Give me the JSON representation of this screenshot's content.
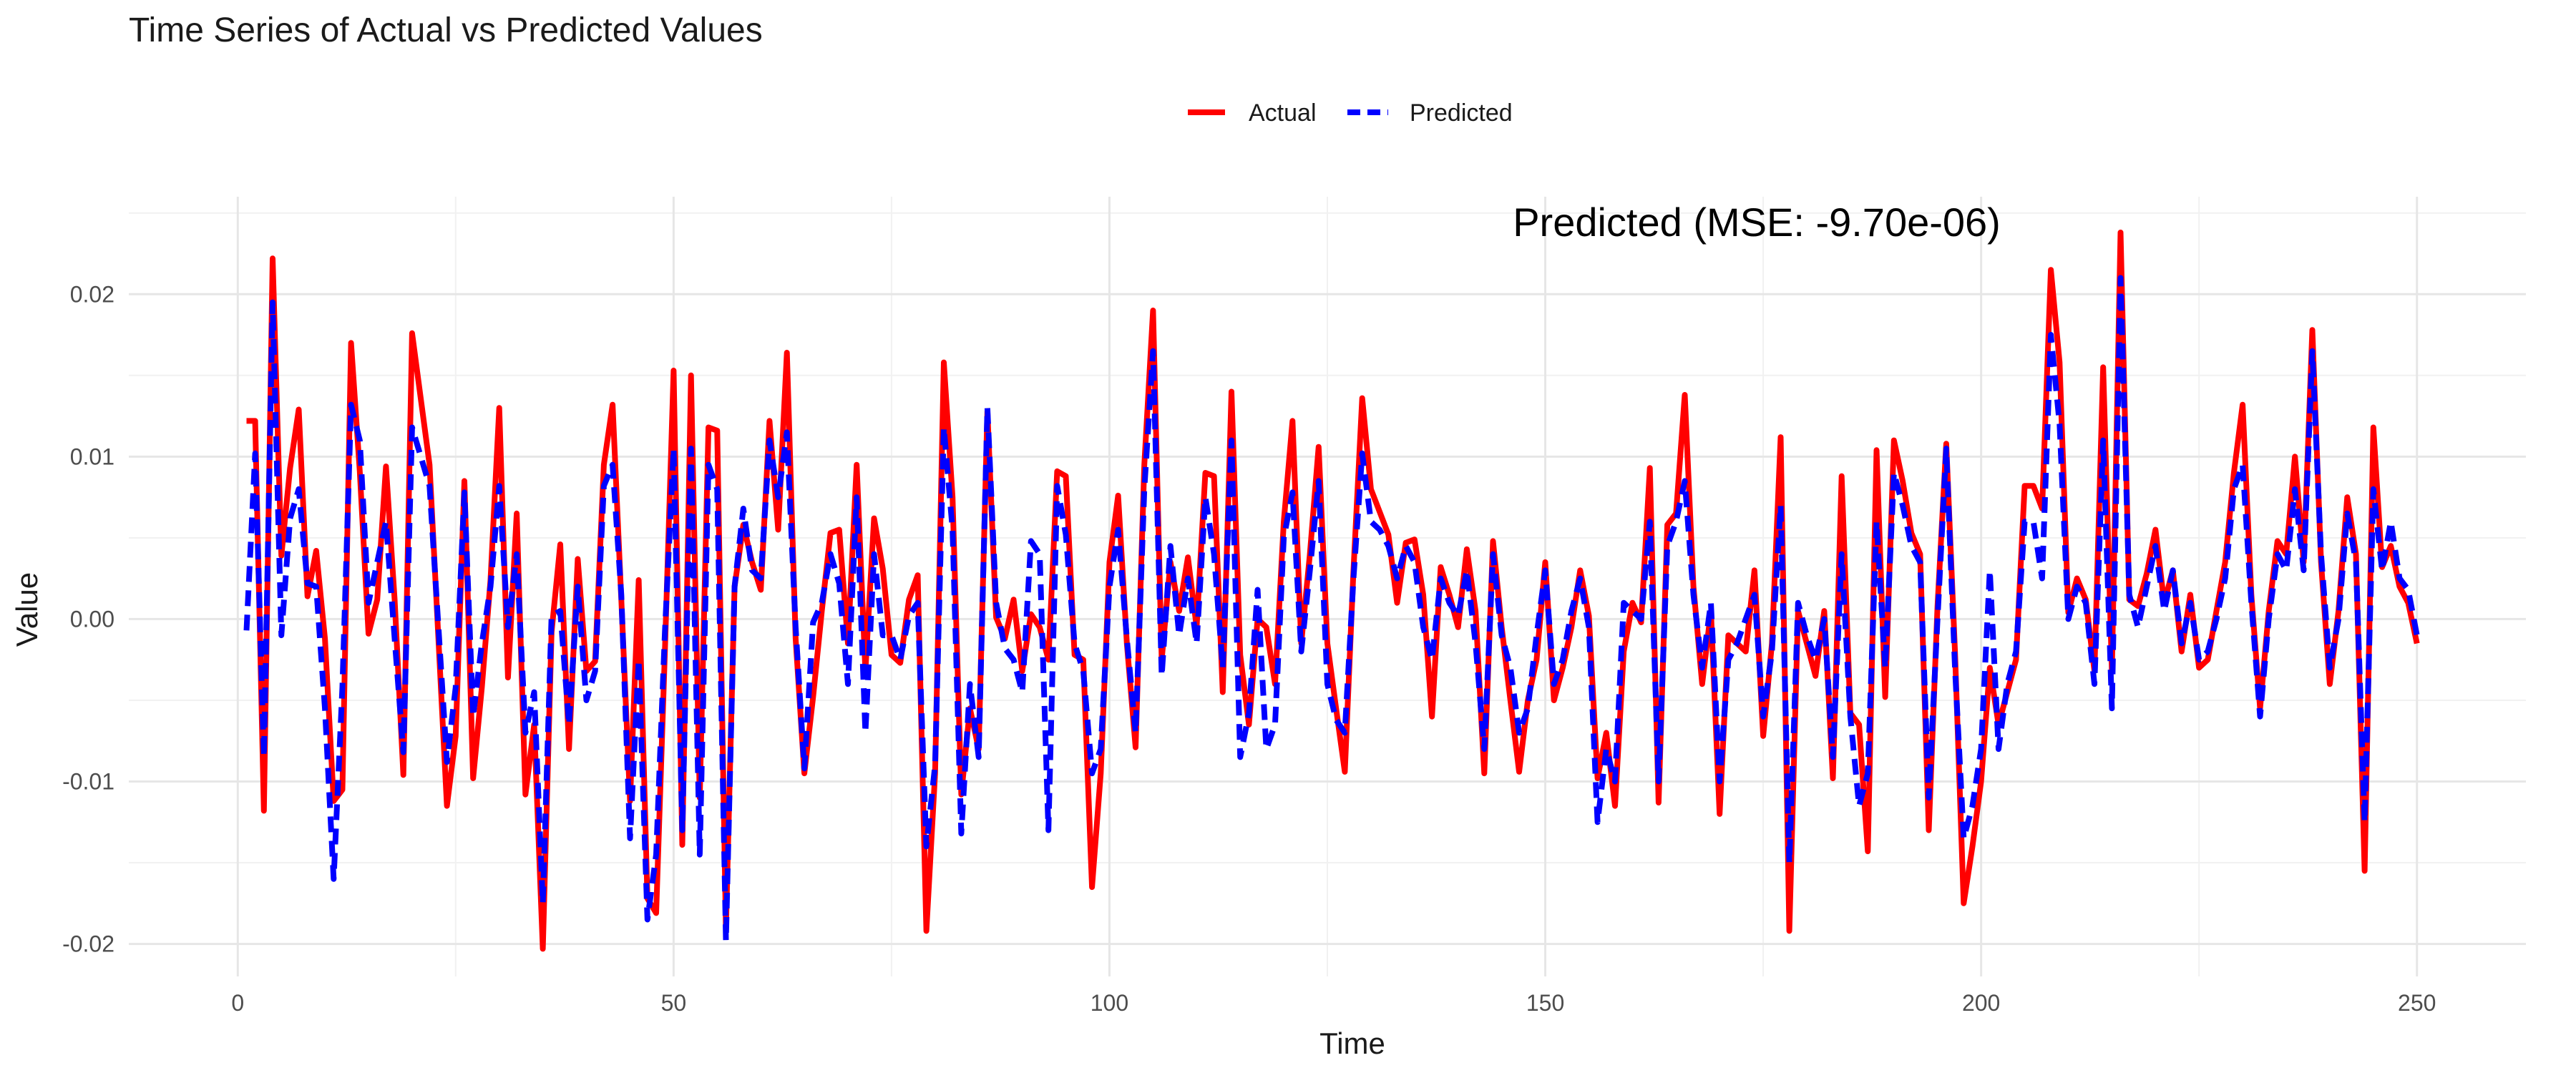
{
  "chart_data": {
    "type": "line",
    "title": "Time Series of Actual vs Predicted Values",
    "xlabel": "Time",
    "ylabel": "Value",
    "xlim": [
      -12.5,
      262.5
    ],
    "ylim": [
      -0.022,
      0.026
    ],
    "x_ticks": [
      0,
      50,
      100,
      150,
      200,
      250
    ],
    "x_tick_labels": [
      "0",
      "50",
      "100",
      "150",
      "200",
      "250"
    ],
    "y_ticks": [
      -0.02,
      -0.01,
      0.0,
      0.01,
      0.02
    ],
    "y_tick_labels": [
      "-0.02",
      "-0.01",
      "0.00",
      "0.01",
      "0.02"
    ],
    "grid": true,
    "legend_position": "top-center",
    "annotation": "Predicted (MSE: -9.70e-06)",
    "series": [
      {
        "name": "Actual",
        "color": "#ff0000",
        "dash": "solid",
        "x": [
          1,
          2,
          3,
          4,
          5,
          6,
          7,
          8,
          9,
          10,
          11,
          12,
          13,
          14,
          15,
          16,
          17,
          18,
          19,
          20,
          22,
          24,
          25,
          26,
          27,
          28,
          29,
          30,
          31,
          32,
          33,
          34,
          35,
          36,
          37,
          38,
          39,
          40,
          41,
          42,
          43,
          44,
          45,
          46,
          47,
          48,
          49,
          50,
          51,
          52,
          53,
          54,
          55,
          56,
          57,
          58,
          59,
          60,
          61,
          62,
          63,
          64,
          65,
          66,
          67,
          68,
          69,
          70,
          71,
          72,
          73,
          74,
          75,
          76,
          77,
          78,
          79,
          80,
          81,
          82,
          83,
          84,
          85,
          86,
          87,
          88,
          89,
          90,
          91,
          92,
          93,
          94,
          95,
          96,
          97,
          98,
          99,
          100,
          101,
          102,
          103,
          104,
          105,
          106,
          107,
          108,
          109,
          110,
          111,
          112,
          113,
          114,
          115,
          116,
          117,
          118,
          119,
          120,
          121,
          122,
          123,
          124,
          125,
          126,
          127,
          128,
          129,
          130,
          131,
          132,
          133,
          134,
          135,
          136,
          137,
          138,
          139,
          140,
          141,
          142,
          143,
          144,
          145,
          146,
          147,
          148,
          149,
          150,
          151,
          152,
          153,
          154,
          155,
          156,
          157,
          158,
          159,
          160,
          161,
          162,
          163,
          164,
          165,
          166,
          167,
          168,
          169,
          170,
          171,
          172,
          173,
          174,
          175,
          176,
          177,
          178,
          179,
          180,
          181,
          182,
          183,
          184,
          185,
          186,
          187,
          188,
          189,
          190,
          191,
          192,
          193,
          194,
          195,
          196,
          197,
          198,
          199,
          200,
          201,
          202,
          203,
          204,
          205,
          206,
          207,
          208,
          209,
          210,
          211,
          212,
          213,
          214,
          215,
          216,
          217,
          218,
          219,
          220,
          221,
          222,
          223,
          224,
          225,
          226,
          227,
          228,
          229,
          230,
          231,
          232,
          233,
          234,
          235,
          236,
          237,
          238,
          239,
          240,
          241,
          242,
          243,
          244,
          245,
          246,
          247,
          248,
          249,
          250
        ],
        "values": [
          0.0122,
          0.0122,
          -0.0118,
          0.0222,
          0.0039,
          0.0093,
          0.0129,
          0.0014,
          0.0042,
          -0.0012,
          -0.0112,
          -0.0105,
          0.017,
          0.0091,
          -0.0009,
          0.0012,
          0.0094,
          0.0012,
          -0.0096,
          0.0176,
          0.0095,
          -0.0115,
          -0.0072,
          0.0085,
          -0.0098,
          -0.0042,
          0.0024,
          0.013,
          -0.0036,
          0.0065,
          -0.0108,
          -0.0065,
          -0.0203,
          -0.0008,
          0.0046,
          -0.008,
          0.0037,
          -0.0032,
          -0.0026,
          0.0095,
          0.0132,
          0.0012,
          -0.0112,
          0.0024,
          -0.0172,
          -0.0181,
          -0.002,
          0.0153,
          -0.0139,
          0.015,
          -0.011,
          0.0118,
          0.0116,
          -0.0191,
          0.002,
          0.0058,
          0.0035,
          0.0018,
          0.0122,
          0.0055,
          0.0164,
          -0.0012,
          -0.0095,
          -0.0048,
          0.0005,
          0.0053,
          0.0055,
          -0.0015,
          0.0095,
          -0.0032,
          0.0062,
          0.0031,
          -0.0022,
          -0.0027,
          0.0012,
          0.0027,
          -0.0192,
          -0.0095,
          0.0158,
          0.0075,
          -0.0108,
          -0.0055,
          -0.008,
          0.0128,
          0.0001,
          -0.0012,
          0.0012,
          -0.0032,
          0.0003,
          -0.0005,
          -0.0025,
          0.0091,
          0.0088,
          -0.0022,
          -0.0025,
          -0.0165,
          -0.0095,
          0.0035,
          0.0076,
          -0.0015,
          -0.0079,
          0.0095,
          0.019,
          -0.0025,
          0.0035,
          0.0005,
          0.0038,
          -0.0005,
          0.009,
          0.0088,
          -0.0045,
          0.014,
          -0.0022,
          -0.0065,
          0.0,
          -0.0005,
          -0.004,
          0.006,
          0.0122,
          -0.0015,
          0.004,
          0.0106,
          -0.0015,
          -0.0055,
          -0.0094,
          0.003,
          0.0136,
          0.008,
          0.0066,
          0.0052,
          0.001,
          0.0047,
          0.0049,
          0.0015,
          -0.006,
          0.0032,
          0.0015,
          -0.0005,
          0.0043,
          0.0005,
          -0.0095,
          0.0048,
          -0.0005,
          -0.005,
          -0.0094,
          -0.005,
          -0.0025,
          0.0035,
          -0.005,
          -0.003,
          -0.0005,
          0.003,
          0.0002,
          -0.0098,
          -0.007,
          -0.0115,
          -0.002,
          0.001,
          -0.0002,
          0.0093,
          -0.0113,
          0.0058,
          0.0065,
          0.0138,
          0.002,
          -0.004,
          0.0005,
          -0.012,
          -0.001,
          -0.0015,
          -0.002,
          0.003,
          -0.0072,
          -0.0015,
          0.0112,
          -0.0192,
          0.0005,
          -0.0015,
          -0.0035,
          0.0005,
          -0.0098,
          0.0088,
          -0.0058,
          -0.0065,
          -0.0143,
          0.0104,
          -0.0048,
          0.011,
          0.0085,
          0.0053,
          0.004,
          -0.013,
          0.0008,
          0.0108,
          -0.002,
          -0.0175,
          -0.014,
          -0.01,
          -0.003,
          -0.0065,
          -0.0045,
          -0.0025,
          0.0082,
          0.0082,
          0.0068,
          0.0215,
          0.0158,
          0.0004,
          0.0025,
          0.0012,
          -0.0032,
          0.0155,
          -0.0032,
          0.0238,
          0.0012,
          0.0008,
          0.0028,
          0.0055,
          0.001,
          0.003,
          -0.002,
          0.0015,
          -0.003,
          -0.0025,
          0.0005,
          0.0035,
          0.009,
          0.0132,
          0.0015,
          -0.0055,
          0.0005,
          0.0048,
          0.004,
          0.01,
          0.0035,
          0.0178,
          0.0035,
          -0.004,
          0.0005,
          0.0075,
          0.004,
          -0.0155,
          0.0118,
          0.0032,
          0.0045,
          0.002,
          0.001,
          -0.0015
        ]
      },
      {
        "name": "Predicted",
        "color": "#0000ff",
        "dash": "dashed",
        "x": [
          1,
          2,
          3,
          4,
          5,
          6,
          7,
          8,
          9,
          10,
          11,
          12,
          13,
          14,
          15,
          16,
          17,
          18,
          19,
          20,
          22,
          24,
          25,
          26,
          27,
          28,
          29,
          30,
          31,
          32,
          33,
          34,
          35,
          36,
          37,
          38,
          39,
          40,
          41,
          42,
          43,
          44,
          45,
          46,
          47,
          48,
          49,
          50,
          51,
          52,
          53,
          54,
          55,
          56,
          57,
          58,
          59,
          60,
          61,
          62,
          63,
          64,
          65,
          66,
          67,
          68,
          69,
          70,
          71,
          72,
          73,
          74,
          75,
          76,
          77,
          78,
          79,
          80,
          81,
          82,
          83,
          84,
          85,
          86,
          87,
          88,
          89,
          90,
          91,
          92,
          93,
          94,
          95,
          96,
          97,
          98,
          99,
          100,
          101,
          102,
          103,
          104,
          105,
          106,
          107,
          108,
          109,
          110,
          111,
          112,
          113,
          114,
          115,
          116,
          117,
          118,
          119,
          120,
          121,
          122,
          123,
          124,
          125,
          126,
          127,
          128,
          129,
          130,
          131,
          132,
          133,
          134,
          135,
          136,
          137,
          138,
          139,
          140,
          141,
          142,
          143,
          144,
          145,
          146,
          147,
          148,
          149,
          150,
          151,
          152,
          153,
          154,
          155,
          156,
          157,
          158,
          159,
          160,
          161,
          162,
          163,
          164,
          165,
          166,
          167,
          168,
          169,
          170,
          171,
          172,
          173,
          174,
          175,
          176,
          177,
          178,
          179,
          180,
          181,
          182,
          183,
          184,
          185,
          186,
          187,
          188,
          189,
          190,
          191,
          192,
          193,
          194,
          195,
          196,
          197,
          198,
          199,
          200,
          201,
          202,
          203,
          204,
          205,
          206,
          207,
          208,
          209,
          210,
          211,
          212,
          213,
          214,
          215,
          216,
          217,
          218,
          219,
          220,
          221,
          222,
          223,
          224,
          225,
          226,
          227,
          228,
          229,
          230,
          231,
          232,
          233,
          234,
          235,
          236,
          237,
          238,
          239,
          240,
          241,
          242,
          243,
          244,
          245,
          246,
          247,
          248,
          249,
          250
        ],
        "values": [
          -0.0007,
          0.0102,
          -0.0085,
          0.0195,
          -0.001,
          0.0062,
          0.008,
          0.0022,
          0.002,
          -0.0055,
          -0.016,
          -0.0042,
          0.0132,
          0.011,
          0.001,
          0.0035,
          0.006,
          -0.0012,
          -0.0082,
          0.0118,
          0.0082,
          -0.0088,
          -0.0042,
          0.0078,
          -0.006,
          -0.0015,
          0.002,
          0.0082,
          -0.0005,
          0.004,
          -0.007,
          -0.0045,
          -0.0175,
          0.0002,
          0.0005,
          -0.0065,
          0.002,
          -0.005,
          -0.0032,
          0.0082,
          0.0095,
          0.0015,
          -0.0135,
          -0.0025,
          -0.0185,
          -0.0145,
          -0.0008,
          0.0105,
          -0.013,
          0.0105,
          -0.0145,
          0.0095,
          0.008,
          -0.0198,
          0.002,
          0.0068,
          0.003,
          0.0025,
          0.011,
          0.0075,
          0.0115,
          -0.0005,
          -0.0092,
          -0.0002,
          0.001,
          0.004,
          0.0022,
          -0.004,
          0.0075,
          -0.007,
          0.004,
          -0.001,
          -0.001,
          -0.0025,
          0.0002,
          0.001,
          -0.014,
          -0.009,
          0.0118,
          0.0055,
          -0.0132,
          -0.004,
          -0.0085,
          0.013,
          0.001,
          -0.0018,
          -0.0025,
          -0.0045,
          0.0048,
          0.004,
          -0.013,
          0.0082,
          0.0052,
          -0.0015,
          -0.0032,
          -0.0095,
          -0.008,
          0.002,
          0.0055,
          -0.0012,
          -0.007,
          0.008,
          0.0165,
          -0.0035,
          0.0045,
          -0.001,
          0.0025,
          -0.0015,
          0.0075,
          0.004,
          -0.003,
          0.011,
          -0.0085,
          -0.0058,
          0.0018,
          -0.008,
          -0.0065,
          0.005,
          0.0078,
          -0.002,
          0.003,
          0.0085,
          -0.004,
          -0.0062,
          -0.007,
          0.0025,
          0.0102,
          0.006,
          0.0055,
          0.0045,
          0.0025,
          0.0045,
          0.0035,
          -0.0005,
          -0.0025,
          0.0025,
          0.001,
          0.0002,
          0.003,
          -0.0015,
          -0.008,
          0.004,
          -0.001,
          -0.003,
          -0.007,
          -0.0055,
          -0.001,
          0.003,
          -0.004,
          -0.0025,
          0.0005,
          0.0025,
          -0.0005,
          -0.0125,
          -0.008,
          -0.01,
          0.001,
          0.0005,
          0.0,
          0.006,
          -0.01,
          0.0045,
          0.006,
          0.0085,
          0.0015,
          -0.003,
          0.001,
          -0.01,
          -0.0025,
          -0.0015,
          0.0,
          0.0015,
          -0.006,
          -0.002,
          0.007,
          -0.015,
          0.001,
          -0.001,
          -0.0025,
          0.0,
          -0.0085,
          0.004,
          -0.006,
          -0.0115,
          -0.0095,
          0.006,
          -0.003,
          0.009,
          0.007,
          0.0045,
          0.0035,
          -0.011,
          0.0,
          0.0105,
          -0.003,
          -0.0135,
          -0.0115,
          -0.008,
          0.003,
          -0.008,
          -0.004,
          -0.002,
          0.006,
          0.006,
          0.0025,
          0.0175,
          0.012,
          0.0,
          0.002,
          0.001,
          -0.004,
          0.011,
          -0.0055,
          0.021,
          0.0015,
          -0.0005,
          0.002,
          0.0045,
          0.0005,
          0.003,
          -0.0015,
          0.001,
          -0.0025,
          -0.002,
          0.0,
          0.0025,
          0.008,
          0.0095,
          0.001,
          -0.006,
          0.0,
          0.004,
          0.003,
          0.008,
          0.003,
          0.0165,
          0.004,
          -0.003,
          0.0,
          0.0065,
          0.0035,
          -0.0125,
          0.008,
          0.003,
          0.006,
          0.0025,
          0.0018,
          -0.001
        ]
      }
    ]
  }
}
